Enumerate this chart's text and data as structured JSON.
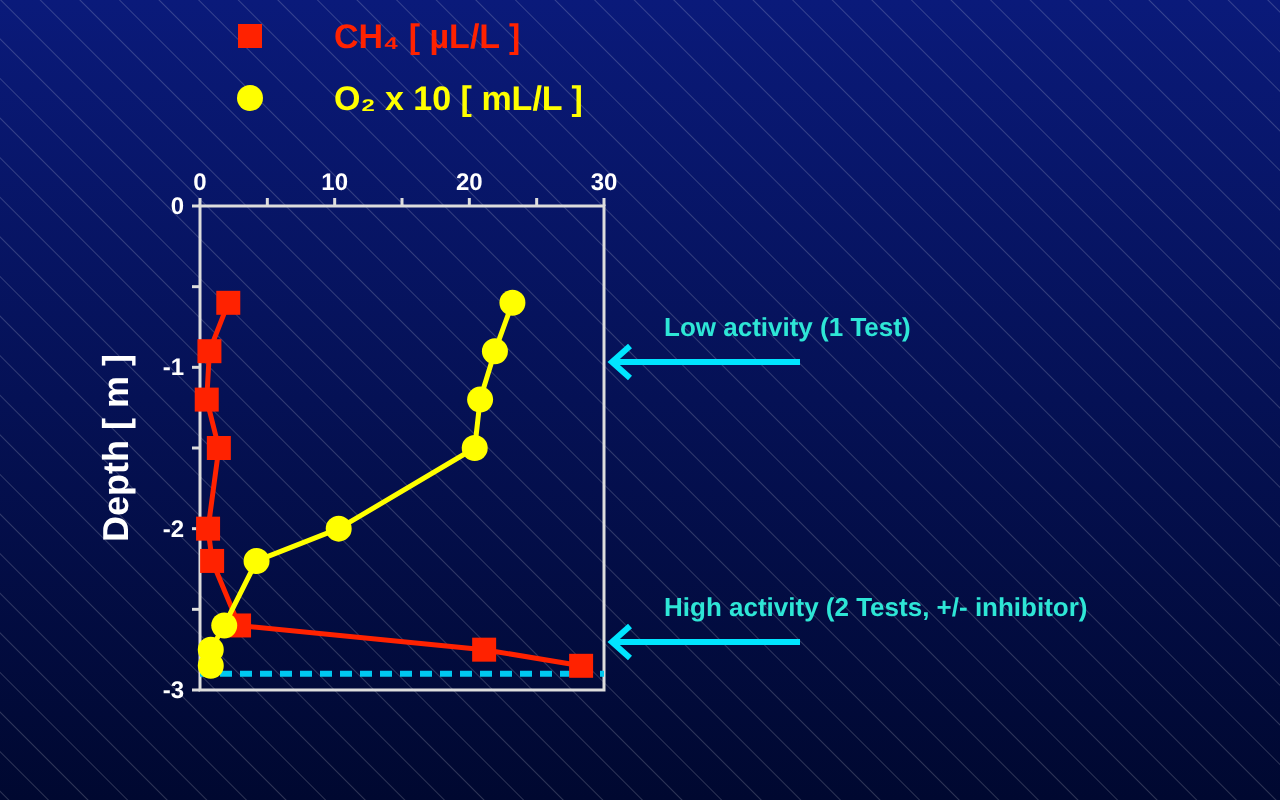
{
  "chart_data": {
    "type": "line",
    "ylabel": "Depth [ m ]",
    "xlim": [
      0,
      30
    ],
    "xticks": [
      0,
      {
        "value": 5,
        "label": null
      },
      10,
      {
        "value": 15,
        "label": null
      },
      20,
      {
        "value": 25,
        "label": null
      },
      30
    ],
    "ylim": [
      -3,
      0
    ],
    "yticks": [
      -3,
      {
        "value": -2.5,
        "label": null
      },
      -2,
      {
        "value": -1.5,
        "label": null
      },
      -1,
      {
        "value": -0.5,
        "label": null
      },
      0
    ],
    "legend": "top left",
    "line_style": "solid",
    "grid": false,
    "series": [
      {
        "name": "CH₄ [ µL/L ]",
        "color": "#ff2200",
        "marker": "square",
        "x": [
          2.1,
          0.7,
          0.5,
          1.4,
          0.6,
          0.9,
          2.9,
          21.1,
          28.3
        ],
        "values": [
          -0.6,
          -0.9,
          -1.2,
          -1.5,
          -2.0,
          -2.2,
          -2.6,
          -2.75,
          -2.85
        ]
      },
      {
        "name": "O₂ x 10 [ mL/L ]",
        "color": "#ffff00",
        "marker": "circle",
        "x": [
          23.2,
          21.9,
          20.8,
          20.4,
          10.3,
          4.2,
          1.8,
          0.8,
          0.8
        ],
        "values": [
          -0.6,
          -0.9,
          -1.2,
          -1.5,
          -2.0,
          -2.2,
          -2.6,
          -2.75,
          -2.85
        ]
      }
    ],
    "ref_lines": [
      {
        "axis": "y",
        "value": -2.9,
        "color": "#00c8f0",
        "line_style": "dashed"
      }
    ],
    "annotations": [
      "Low activity (1 Test)",
      "High activity (2 Tests, +/- inhibitor)"
    ]
  }
}
